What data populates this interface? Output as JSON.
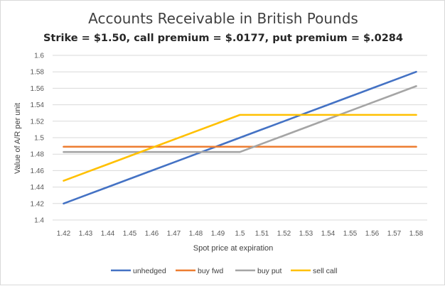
{
  "chart_data": {
    "type": "line",
    "title": "Accounts Receivable in British Pounds",
    "subtitle": "Strike = $1.50, call premium = $.0177, put premium = $.0284",
    "xlabel": "Spot price at expiration",
    "ylabel": "Value of A/R per unit",
    "x": [
      1.42,
      1.43,
      1.44,
      1.45,
      1.46,
      1.47,
      1.48,
      1.49,
      1.5,
      1.51,
      1.52,
      1.53,
      1.54,
      1.55,
      1.56,
      1.57,
      1.58
    ],
    "x_tick_labels": [
      "1.42",
      "1.43",
      "1.44",
      "1.45",
      "1.46",
      "1.47",
      "1.48",
      "1.49",
      "1.5",
      "1.51",
      "1.52",
      "1.53",
      "1.54",
      "1.55",
      "1.56",
      "1.57",
      "1.58"
    ],
    "ylim": [
      1.4,
      1.6
    ],
    "y_ticks": [
      1.4,
      1.42,
      1.44,
      1.46,
      1.48,
      1.5,
      1.52,
      1.54,
      1.56,
      1.58,
      1.6
    ],
    "y_tick_labels": [
      "1.4",
      "1.42",
      "1.44",
      "1.46",
      "1.48",
      "1.5",
      "1.52",
      "1.54",
      "1.56",
      "1.58",
      "1.6"
    ],
    "grid": true,
    "legend_position": "bottom",
    "series": [
      {
        "name": "unhedged",
        "color": "#4472C4",
        "values": [
          1.42,
          1.43,
          1.44,
          1.45,
          1.46,
          1.47,
          1.48,
          1.49,
          1.5,
          1.51,
          1.52,
          1.53,
          1.54,
          1.55,
          1.56,
          1.57,
          1.58
        ]
      },
      {
        "name": "buy fwd",
        "color": "#ED7D31",
        "values": [
          1.489,
          1.489,
          1.489,
          1.489,
          1.489,
          1.489,
          1.489,
          1.489,
          1.489,
          1.489,
          1.489,
          1.489,
          1.489,
          1.489,
          1.489,
          1.489,
          1.489
        ]
      },
      {
        "name": "buy put",
        "color": "#A5A5A5",
        "values": [
          1.4826,
          1.4826,
          1.4826,
          1.4826,
          1.4826,
          1.4826,
          1.4826,
          1.4826,
          1.4826,
          1.4926,
          1.5026,
          1.5126,
          1.5226,
          1.5326,
          1.5426,
          1.5526,
          1.5626
        ]
      },
      {
        "name": "sell call",
        "color": "#FFC000",
        "values": [
          1.4477,
          1.4577,
          1.4677,
          1.4777,
          1.4877,
          1.4977,
          1.5077,
          1.5177,
          1.5277,
          1.5277,
          1.5277,
          1.5277,
          1.5277,
          1.5277,
          1.5277,
          1.5277,
          1.5277
        ]
      }
    ]
  }
}
